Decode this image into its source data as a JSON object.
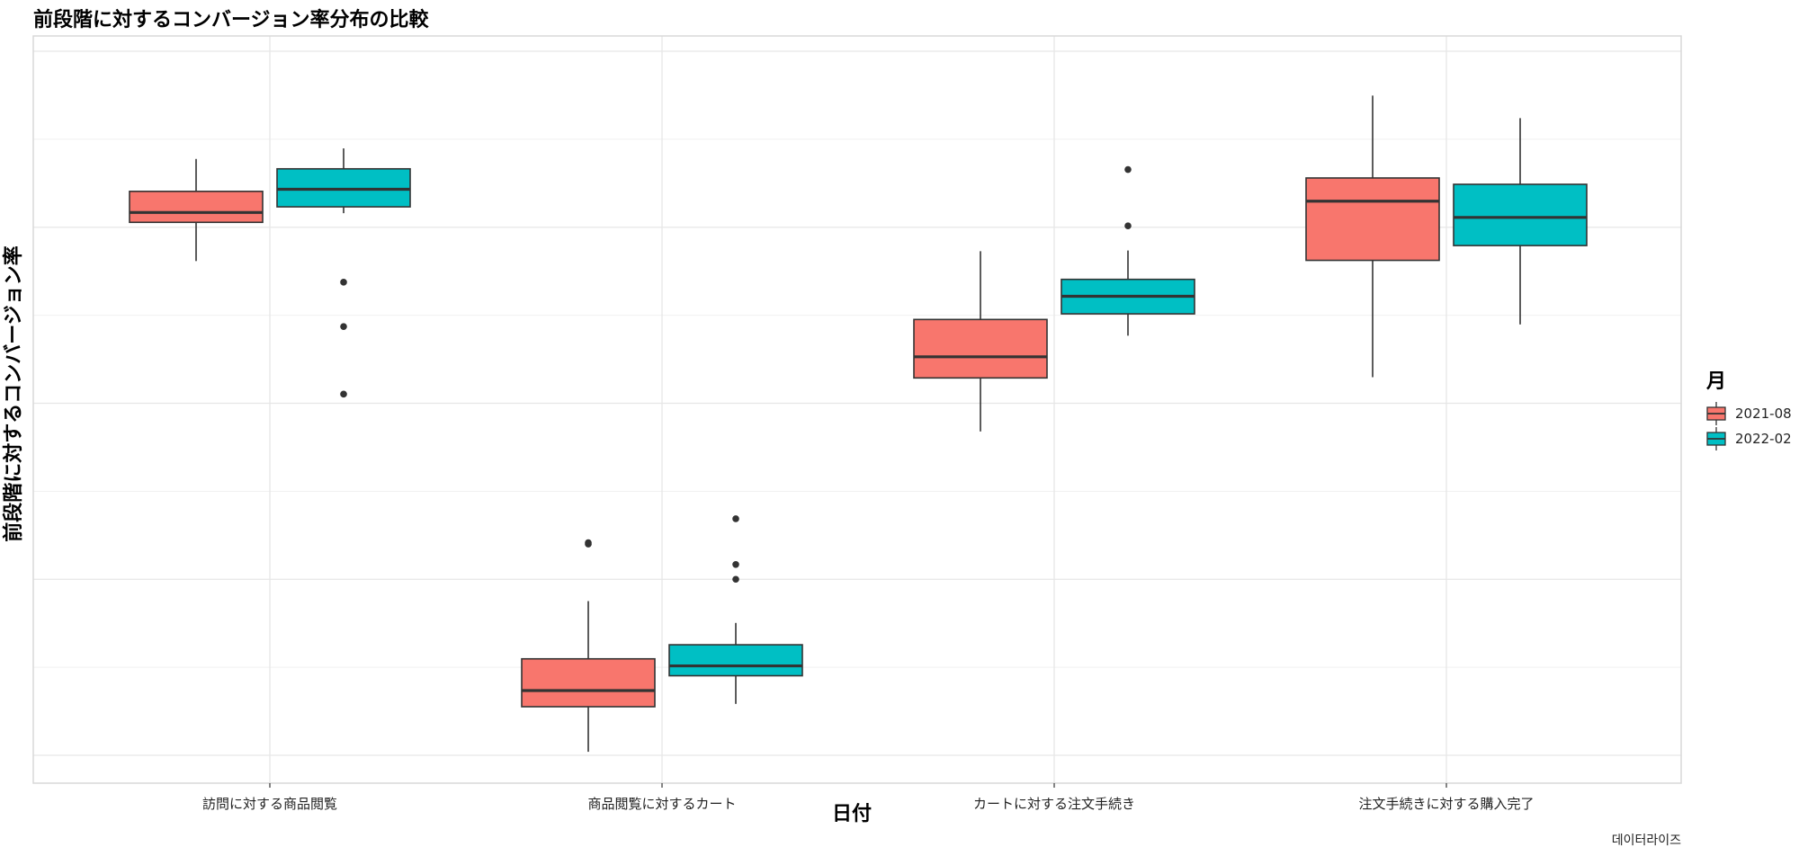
{
  "chart_data": {
    "type": "boxplot",
    "title": "前段階に対するコンバージョン率分布の比較",
    "xlabel": "日付",
    "ylabel": "前段階に対するコンバージョン率",
    "caption": "데이터라이즈",
    "y_tick_labels_visible": false,
    "ylim": [
      0,
      1
    ],
    "categories": [
      "訪問に対する商品閲覧",
      "商品閲覧に対するカート",
      "カートに対する注文手続き",
      "注文手続きに対する購入完了"
    ],
    "legend": {
      "title": "月",
      "position": "right"
    },
    "series": [
      {
        "name": "2021-08",
        "color": "#F8766D",
        "boxes": [
          {
            "whisker_low": 0.702,
            "q1": 0.757,
            "median": 0.771,
            "q3": 0.801,
            "whisker_high": 0.847,
            "outliers": []
          },
          {
            "whisker_low": 0.005,
            "q1": 0.069,
            "median": 0.092,
            "q3": 0.137,
            "whisker_high": 0.219,
            "outliers": [
              0.3,
              0.302
            ]
          },
          {
            "whisker_low": 0.46,
            "q1": 0.536,
            "median": 0.566,
            "q3": 0.619,
            "whisker_high": 0.716,
            "outliers": []
          },
          {
            "whisker_low": 0.537,
            "q1": 0.703,
            "median": 0.787,
            "q3": 0.82,
            "whisker_high": 0.937,
            "outliers": []
          }
        ]
      },
      {
        "name": "2022-02",
        "color": "#00BFC4",
        "boxes": [
          {
            "whisker_low": 0.77,
            "q1": 0.779,
            "median": 0.804,
            "q3": 0.833,
            "whisker_high": 0.862,
            "outliers": [
              0.672,
              0.609,
              0.513
            ]
          },
          {
            "whisker_low": 0.073,
            "q1": 0.113,
            "median": 0.127,
            "q3": 0.157,
            "whisker_high": 0.188,
            "outliers": [
              0.25,
              0.271,
              0.336
            ]
          },
          {
            "whisker_low": 0.596,
            "q1": 0.627,
            "median": 0.652,
            "q3": 0.676,
            "whisker_high": 0.717,
            "outliers": [
              0.752,
              0.832
            ]
          },
          {
            "whisker_low": 0.612,
            "q1": 0.724,
            "median": 0.764,
            "q3": 0.811,
            "whisker_high": 0.905,
            "outliers": []
          }
        ]
      }
    ]
  }
}
